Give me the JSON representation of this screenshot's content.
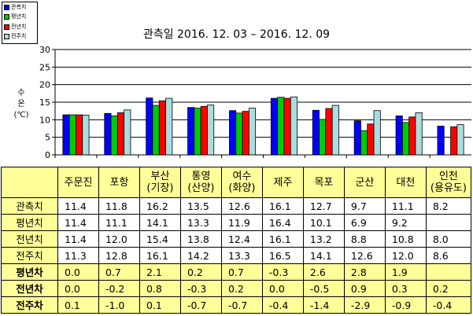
{
  "chart_data": {
    "type": "bar",
    "title": "관측일 2016. 12. 03 – 2016. 12. 09",
    "ylabel": "수온 (℃)",
    "ylim": [
      0,
      30
    ],
    "yticks": [
      0,
      5,
      10,
      15,
      20,
      25,
      30
    ],
    "grid": true,
    "legend_position": "top-left",
    "categories": [
      "주문진",
      "포항",
      "부산\n(기장)",
      "통영\n(산양)",
      "여수\n(화양)",
      "제주",
      "목포",
      "군산",
      "대천",
      "인천\n(용유도)"
    ],
    "series": [
      {
        "name": "관측치",
        "color": "#0000ff",
        "values": [
          11.4,
          11.8,
          16.2,
          13.5,
          12.6,
          16.1,
          12.7,
          9.7,
          11.1,
          8.2
        ]
      },
      {
        "name": "평년치",
        "color": "#00cc00",
        "values": [
          11.4,
          11.1,
          14.1,
          13.3,
          11.9,
          16.4,
          10.1,
          6.9,
          9.2,
          null
        ]
      },
      {
        "name": "전년치",
        "color": "#ff0000",
        "values": [
          11.4,
          12.0,
          15.4,
          13.8,
          12.4,
          16.1,
          13.2,
          8.8,
          10.8,
          8.0
        ]
      },
      {
        "name": "전주치",
        "color": "#aadddd",
        "values": [
          11.3,
          12.8,
          16.1,
          14.2,
          13.3,
          16.5,
          14.1,
          12.6,
          12.0,
          8.6
        ]
      }
    ]
  },
  "legend": {
    "items": [
      {
        "label": "관측치",
        "color": "#0000ff"
      },
      {
        "label": "평년치",
        "color": "#00cc00"
      },
      {
        "label": "전년치",
        "color": "#ff0000"
      },
      {
        "label": "전주치",
        "color": "#aadddd"
      }
    ]
  },
  "table": {
    "headers": [
      [
        "주문진"
      ],
      [
        "포항"
      ],
      [
        "부산",
        "(기장)"
      ],
      [
        "통영",
        "(산양)"
      ],
      [
        "여수",
        "(화양)"
      ],
      [
        "제주"
      ],
      [
        "목포"
      ],
      [
        "군산"
      ],
      [
        "대천"
      ],
      [
        "인천",
        "(용유도)"
      ]
    ],
    "rows": [
      {
        "label": "관측치",
        "diff": false,
        "values": [
          "11.4",
          "11.8",
          "16.2",
          "13.5",
          "12.6",
          "16.1",
          "12.7",
          "9.7",
          "11.1",
          "8.2"
        ]
      },
      {
        "label": "평년치",
        "diff": false,
        "values": [
          "11.4",
          "11.1",
          "14.1",
          "13.3",
          "11.9",
          "16.4",
          "10.1",
          "6.9",
          "9.2",
          ""
        ]
      },
      {
        "label": "전년치",
        "diff": false,
        "values": [
          "11.4",
          "12.0",
          "15.4",
          "13.8",
          "12.4",
          "16.1",
          "13.2",
          "8.8",
          "10.8",
          "8.0"
        ]
      },
      {
        "label": "전주치",
        "diff": false,
        "values": [
          "11.3",
          "12.8",
          "16.1",
          "14.2",
          "13.3",
          "16.5",
          "14.1",
          "12.6",
          "12.0",
          "8.6"
        ]
      },
      {
        "label": "평년차",
        "diff": true,
        "values": [
          "0.0",
          "0.7",
          "2.1",
          "0.2",
          "0.7",
          "-0.3",
          "2.6",
          "2.8",
          "1.9",
          ""
        ]
      },
      {
        "label": "전년차",
        "diff": true,
        "values": [
          "0.0",
          "-0.2",
          "0.8",
          "-0.3",
          "0.2",
          "0.0",
          "-0.5",
          "0.9",
          "0.3",
          "0.2"
        ]
      },
      {
        "label": "전주차",
        "diff": true,
        "values": [
          "0.1",
          "-1.0",
          "0.1",
          "-0.7",
          "-0.7",
          "-0.4",
          "-1.4",
          "-2.9",
          "-0.9",
          "-0.4"
        ]
      }
    ]
  }
}
